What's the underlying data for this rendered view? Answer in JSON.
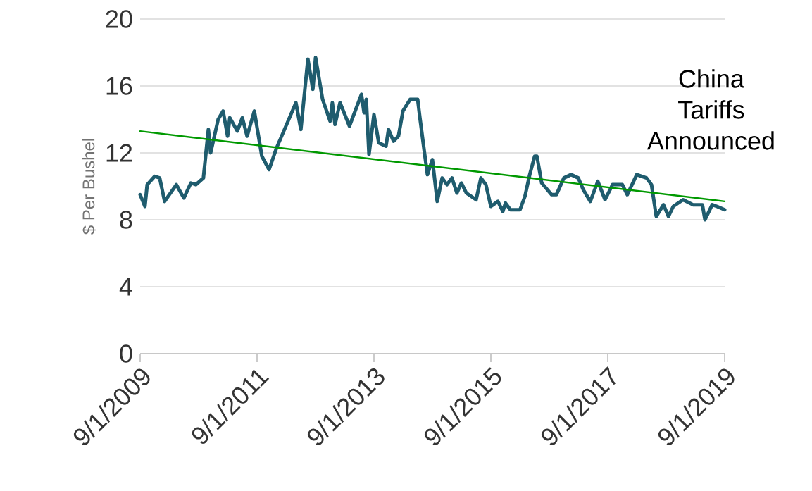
{
  "chart_data": {
    "type": "line",
    "ylabel": "$ Per Bushel",
    "annotations": [
      "China Tariffs Announced"
    ],
    "xlim": [
      "2009-09-01",
      "2019-09-01"
    ],
    "ylim": [
      0,
      20
    ],
    "yticks": [
      0,
      4,
      8,
      12,
      16,
      20
    ],
    "grid": "y",
    "xticks": [
      {
        "value": "2009-09-01",
        "label": "9/1/2009"
      },
      {
        "value": "2011-09-01",
        "label": "9/1/2011"
      },
      {
        "value": "2013-09-01",
        "label": "9/1/2013"
      },
      {
        "value": "2015-09-01",
        "label": "9/1/2015"
      },
      {
        "value": "2017-09-01",
        "label": "9/1/2017"
      },
      {
        "value": "2019-09-01",
        "label": "9/1/2019"
      }
    ],
    "series": [
      {
        "color": "#1f5c6e",
        "x": [
          "2009-09-01",
          "2009-10-01",
          "2009-10-15",
          "2009-12-01",
          "2010-01-01",
          "2010-02-01",
          "2010-04-15",
          "2010-06-01",
          "2010-07-15",
          "2010-08-15",
          "2010-10-01",
          "2010-11-01",
          "2010-11-15",
          "2011-01-01",
          "2011-02-01",
          "2011-03-01",
          "2011-03-15",
          "2011-05-01",
          "2011-06-01",
          "2011-07-01",
          "2011-08-15",
          "2011-10-01",
          "2011-11-15",
          "2012-01-01",
          "2012-02-15",
          "2012-05-01",
          "2012-06-01",
          "2012-07-15",
          "2012-08-15",
          "2012-09-01",
          "2012-10-15",
          "2012-12-01",
          "2012-12-15",
          "2013-01-01",
          "2013-02-01",
          "2013-04-01",
          "2013-06-15",
          "2013-07-01",
          "2013-07-15",
          "2013-08-01",
          "2013-09-01",
          "2013-10-01",
          "2013-11-15",
          "2013-12-01",
          "2014-01-01",
          "2014-02-01",
          "2014-03-01",
          "2014-04-15",
          "2014-06-01",
          "2014-06-15",
          "2014-07-15",
          "2014-08-01",
          "2014-09-01",
          "2014-10-01",
          "2014-11-01",
          "2014-12-01",
          "2015-01-01",
          "2015-02-01",
          "2015-03-01",
          "2015-04-01",
          "2015-06-01",
          "2015-07-01",
          "2015-08-01",
          "2015-09-01",
          "2015-10-15",
          "2015-11-15",
          "2015-12-01",
          "2016-01-01",
          "2016-03-01",
          "2016-04-01",
          "2016-05-01",
          "2016-06-01",
          "2016-06-15",
          "2016-07-15",
          "2016-09-15",
          "2016-10-15",
          "2016-12-01",
          "2017-01-15",
          "2017-03-01",
          "2017-04-01",
          "2017-05-15",
          "2017-07-01",
          "2017-08-15",
          "2017-10-01",
          "2017-12-01",
          "2018-01-01",
          "2018-03-01",
          "2018-05-01",
          "2018-06-01",
          "2018-07-01",
          "2018-08-15",
          "2018-09-15",
          "2018-10-15",
          "2018-12-15",
          "2019-02-15",
          "2019-04-15",
          "2019-05-01",
          "2019-06-15",
          "2019-07-15",
          "2019-09-01"
        ],
        "values": [
          9.5,
          8.8,
          10.1,
          10.6,
          10.5,
          9.1,
          10.1,
          9.3,
          10.2,
          10.1,
          10.5,
          13.4,
          12.0,
          14.0,
          14.5,
          13.0,
          14.1,
          13.3,
          14.1,
          13.0,
          14.5,
          11.8,
          11.0,
          12.3,
          13.3,
          15.0,
          13.4,
          17.6,
          15.8,
          17.7,
          15.2,
          13.9,
          15.0,
          13.7,
          15.0,
          13.6,
          15.5,
          14.4,
          15.2,
          11.9,
          14.3,
          12.6,
          12.4,
          13.4,
          12.7,
          13.0,
          14.5,
          15.2,
          15.2,
          14.1,
          11.9,
          10.7,
          11.6,
          9.1,
          10.5,
          10.1,
          10.5,
          9.6,
          10.2,
          9.6,
          9.2,
          10.5,
          10.1,
          8.8,
          9.1,
          8.5,
          9.0,
          8.6,
          8.6,
          9.4,
          10.7,
          11.8,
          11.8,
          10.2,
          9.5,
          9.5,
          10.5,
          10.7,
          10.5,
          9.8,
          9.1,
          10.3,
          9.2,
          10.1,
          10.1,
          9.5,
          10.7,
          10.5,
          10.1,
          8.2,
          8.9,
          8.2,
          8.8,
          9.2,
          8.9,
          8.9,
          8.0,
          8.9,
          8.8,
          8.6
        ]
      },
      {
        "color": "#009900",
        "x": [
          "2009-09-01",
          "2019-09-01"
        ],
        "values": [
          13.3,
          9.1
        ]
      }
    ]
  }
}
